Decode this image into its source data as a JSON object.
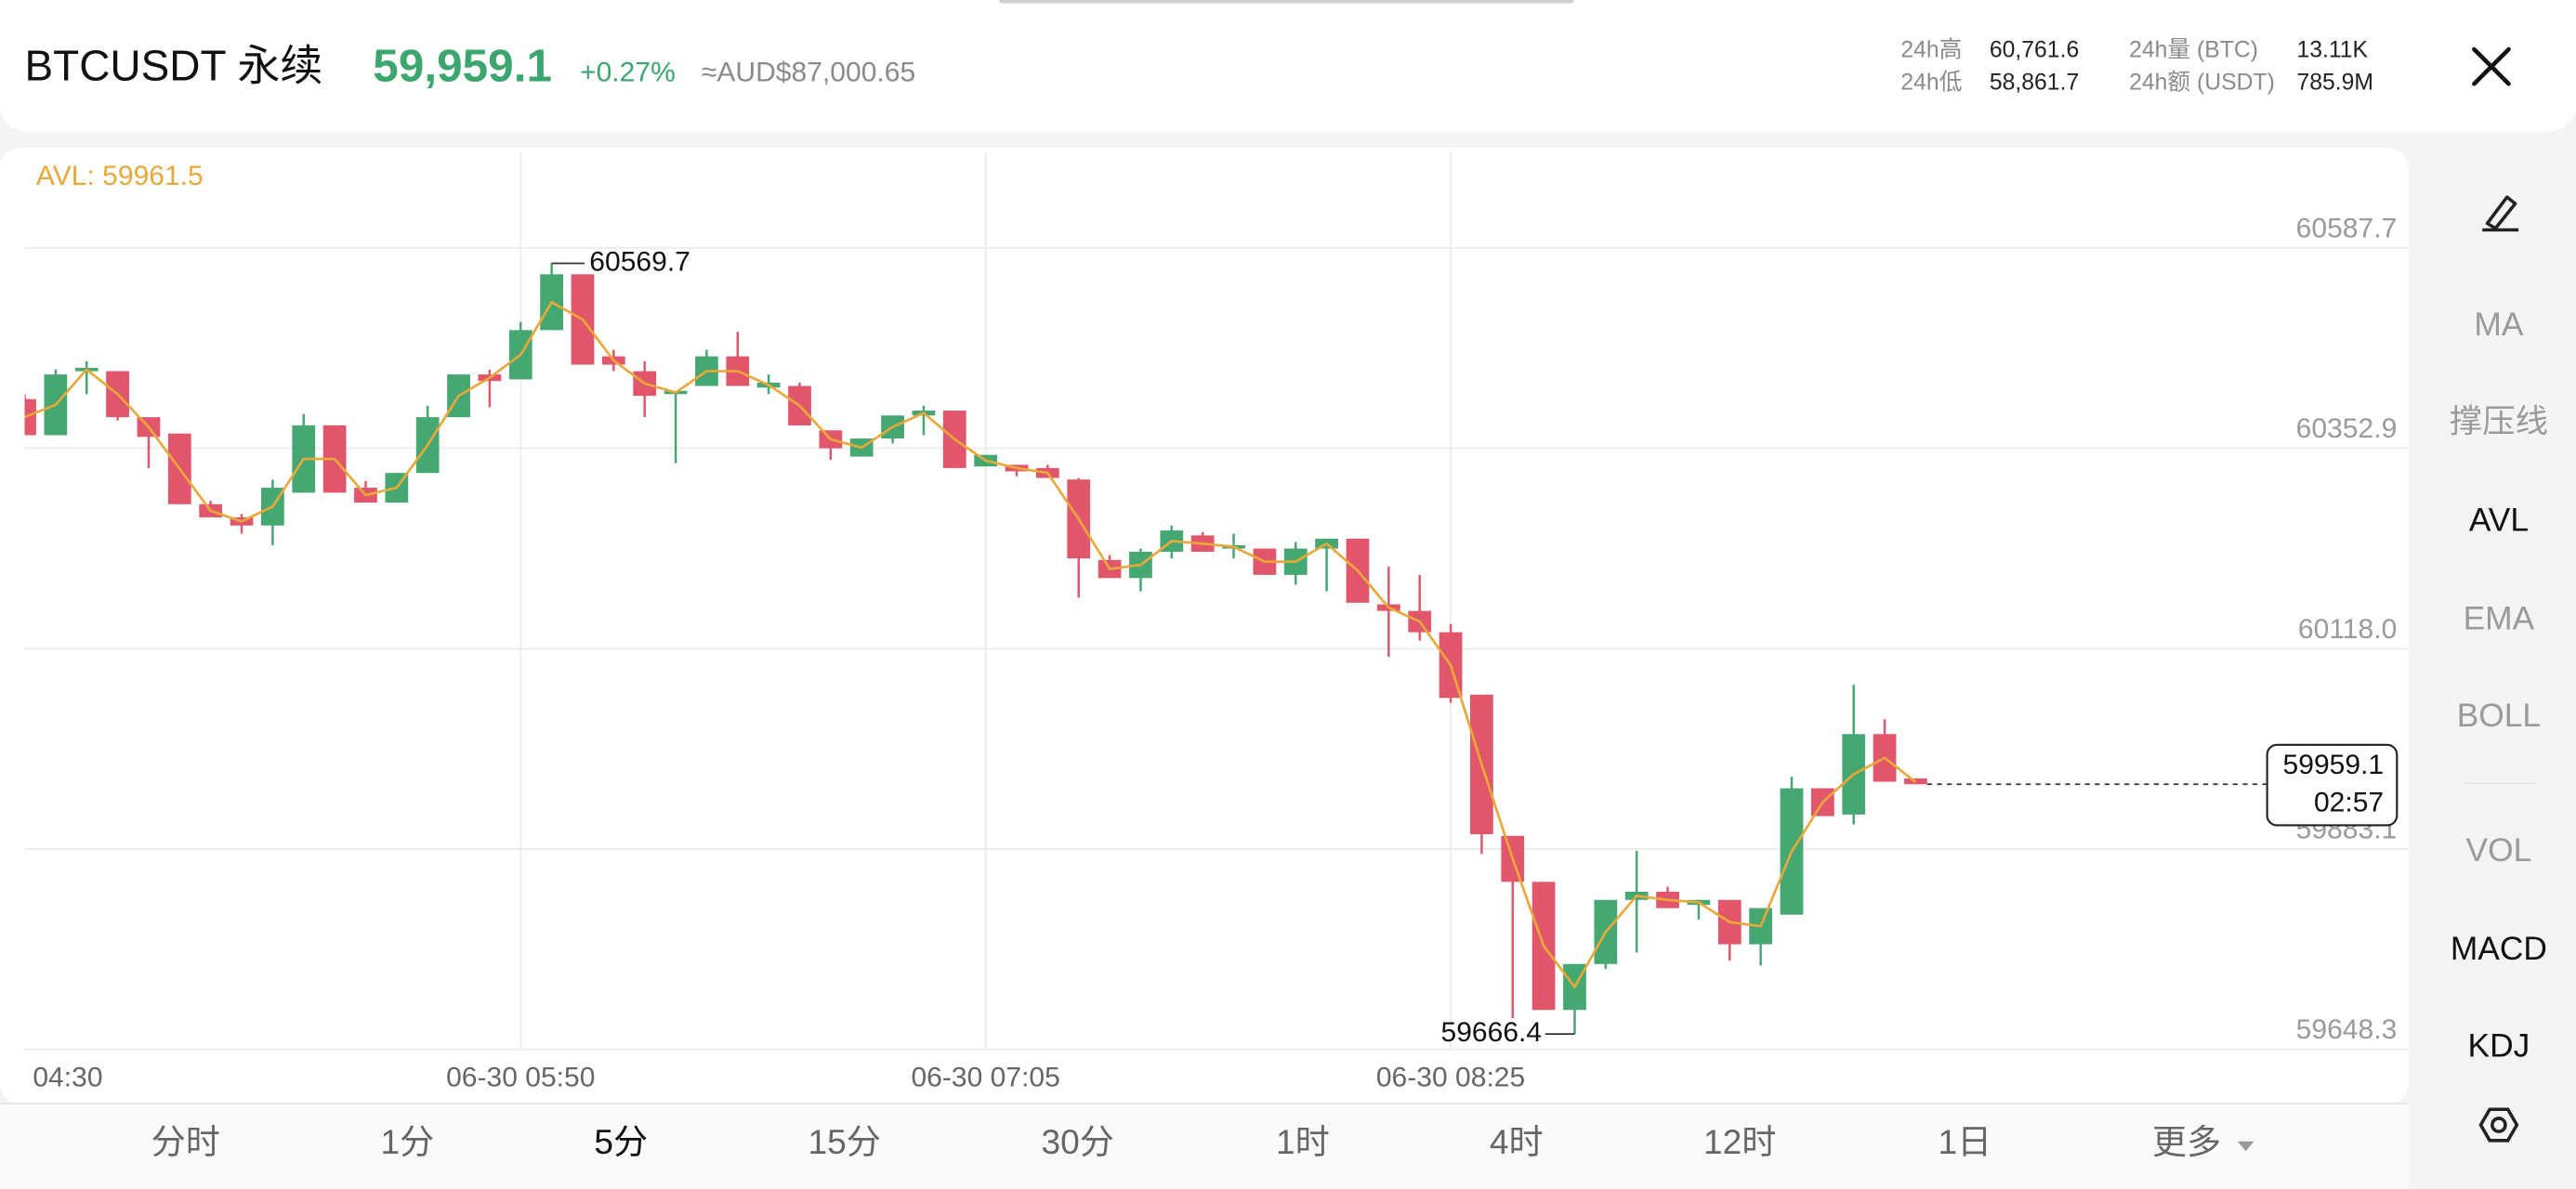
{
  "header": {
    "symbol": "BTCUSDT 永续",
    "price": "59,959.1",
    "change": "+0.27%",
    "fiat": "≈AUD$87,000.65",
    "stats": [
      {
        "label": "24h高",
        "value": "60,761.6"
      },
      {
        "label": "24h低",
        "value": "58,861.7"
      },
      {
        "label": "24h量 (BTC)",
        "value": "13.11K"
      },
      {
        "label": "24h额 (USDT)",
        "value": "785.9M"
      }
    ]
  },
  "chart_data": {
    "type": "candlestick",
    "indicator_label": "AVL: 59961.5",
    "x": [
      "04:30",
      null,
      null,
      null,
      null,
      null,
      null,
      null,
      null,
      null,
      null,
      null,
      null,
      null,
      null,
      null,
      "06-30 05:50",
      null,
      null,
      null,
      null,
      null,
      null,
      null,
      null,
      null,
      null,
      null,
      null,
      null,
      null,
      "06-30 07:05",
      null,
      null,
      null,
      null,
      null,
      null,
      null,
      null,
      null,
      null,
      null,
      null,
      null,
      null,
      "06-30 08:25",
      null,
      null,
      null,
      null,
      null,
      null,
      null,
      null,
      null,
      null,
      null,
      null,
      null,
      null,
      null
    ],
    "open": [
      60410.6,
      60368.3,
      60443.3,
      60443.3,
      60389.4,
      60370.2,
      60287.4,
      60272.0,
      60262.4,
      60300.9,
      60379.8,
      60306.7,
      60289.3,
      60324.0,
      60389.4,
      60439.5,
      60433.7,
      60491.5,
      60556.9,
      60460.7,
      60443.3,
      60416.4,
      60426.0,
      60460.7,
      60424.1,
      60426.0,
      60374.0,
      60343.2,
      60364.4,
      60391.4,
      60397.1,
      60331.7,
      60333.6,
      60329.8,
      60316.3,
      60222.0,
      60200.8,
      60231.6,
      60250.8,
      60235.4,
      60235.4,
      60204.6,
      60235.4,
      60247.0,
      60170.0,
      60162.3,
      60137.3,
      60064.1,
      59898.6,
      59844.7,
      59694.5,
      59748.4,
      59823.5,
      59833.1,
      59817.7,
      59823.5,
      59771.5,
      59806.2,
      59954.4,
      59923.6,
      60017.9,
      59965.9
    ],
    "high": [
      60416.4,
      60445.3,
      60454.9,
      60443.3,
      60389.4,
      60370.2,
      60291.3,
      60275.9,
      60316.3,
      60393.3,
      60379.8,
      60314.4,
      60324.0,
      60402.9,
      60439.5,
      60445.3,
      60501.1,
      60569.7,
      60556.9,
      60468.4,
      60454.9,
      60420.2,
      60468.4,
      60489.5,
      60439.5,
      60429.9,
      60374.0,
      60364.4,
      60391.4,
      60402.9,
      60397.1,
      60345.2,
      60333.6,
      60333.6,
      60318.2,
      60227.7,
      60235.4,
      60262.4,
      60254.7,
      60252.8,
      60235.4,
      60243.1,
      60247.0,
      60247.0,
      60214.3,
      60204.6,
      60146.9,
      60064.1,
      59898.6,
      59844.7,
      59748.4,
      59823.5,
      59881.2,
      59838.9,
      59823.5,
      59823.5,
      59813.9,
      59967.9,
      59954.4,
      60075.7,
      60035.2,
      59965.9
    ],
    "low": [
      60368.3,
      60368.3,
      60416.4,
      60385.6,
      60329.8,
      60287.4,
      60272.0,
      60252.8,
      60239.3,
      60300.9,
      60300.9,
      60289.3,
      60289.3,
      60324.0,
      60389.4,
      60401.0,
      60433.7,
      60491.5,
      60451.0,
      60443.3,
      60389.4,
      60335.5,
      60426.0,
      60426.0,
      60416.4,
      60379.8,
      60339.4,
      60343.2,
      60358.6,
      60368.3,
      60329.8,
      60331.7,
      60320.1,
      60318.2,
      60177.7,
      60200.8,
      60185.4,
      60223.9,
      60231.6,
      60223.9,
      60204.6,
      60193.1,
      60185.4,
      60171.9,
      60108.4,
      60127.6,
      60054.5,
      59877.4,
      59684.9,
      59694.5,
      59666.4,
      59742.6,
      59761.9,
      59813.9,
      59800.4,
      59752.3,
      59746.5,
      59806.2,
      59921.7,
      59912.0,
      59962.1,
      59959.1
    ],
    "close": [
      60368.3,
      60439.5,
      60447.2,
      60389.4,
      60366.3,
      60287.4,
      60272.0,
      60262.4,
      60306.7,
      60379.8,
      60300.9,
      60289.3,
      60324.0,
      60389.4,
      60439.5,
      60431.8,
      60491.5,
      60556.9,
      60451.0,
      60451.0,
      60414.5,
      60420.2,
      60460.7,
      60426.0,
      60429.9,
      60379.8,
      60352.9,
      60364.4,
      60391.4,
      60397.1,
      60329.8,
      60345.2,
      60325.9,
      60318.2,
      60223.9,
      60200.8,
      60231.6,
      60256.6,
      60231.6,
      60239.3,
      60204.6,
      60235.4,
      60247.0,
      60171.9,
      60162.3,
      60137.3,
      60060.3,
      59900.5,
      59844.7,
      59694.5,
      59748.4,
      59823.5,
      59833.1,
      59813.9,
      59823.5,
      59771.5,
      59813.9,
      59954.4,
      59921.7,
      60017.9,
      59962.1,
      59959.1
    ],
    "avl": [
      60389.5,
      60403.9,
      60445.3,
      60416.4,
      60377.9,
      60328.8,
      60279.7,
      60267.2,
      60284.6,
      60340.4,
      60340.4,
      60298.0,
      60306.7,
      60356.7,
      60414.5,
      60435.7,
      60462.6,
      60524.2,
      60504.0,
      60455.9,
      60428.9,
      60418.3,
      60443.4,
      60443.4,
      60427.0,
      60402.9,
      60363.5,
      60353.8,
      60377.9,
      60394.3,
      60363.5,
      60338.5,
      60329.8,
      60324.0,
      60270.1,
      60211.4,
      60216.2,
      60244.1,
      60241.2,
      60237.4,
      60220.0,
      60220.0,
      60241.2,
      60209.5,
      60166.2,
      60149.8,
      60098.8,
      59982.3,
      59871.7,
      59769.6,
      59721.5,
      59786.0,
      59828.3,
      59823.5,
      59820.6,
      59797.5,
      59792.7,
      59880.3,
      59938.1,
      59970.8,
      59990.0,
      59961.5
    ],
    "colors": {
      "up": "#45a772",
      "down": "#e2566c",
      "avl": "#e9a838"
    },
    "ylim": [
      59648.3,
      60701.3
    ],
    "yticks": [
      60587.7,
      60352.9,
      {
        "value": 60118,
        "label": "60118.0"
      },
      59883.1,
      59648.3
    ],
    "grid": true,
    "countdown": "02:57"
  },
  "side_menu": [
    "MA",
    "撑压线",
    "AVL",
    "EMA",
    "BOLL",
    "VOL",
    "MACD",
    "KDJ"
  ],
  "intervals": [
    "分时",
    "1分",
    "5分",
    "15分",
    "30分",
    "1时",
    "4时",
    "12时",
    "1日",
    "更多"
  ]
}
